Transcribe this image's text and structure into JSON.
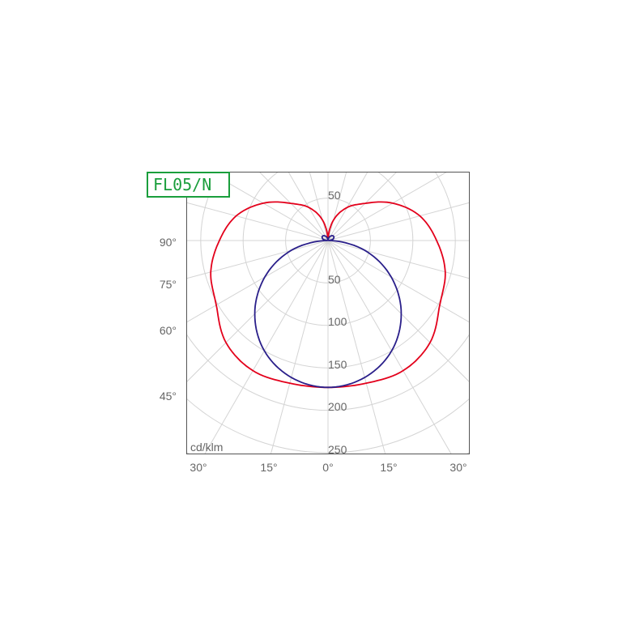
{
  "chart_data": {
    "type": "polar",
    "title": "FL05/N",
    "unit_label": "cd/klm",
    "radial_ticks": [
      50,
      100,
      150,
      200,
      250
    ],
    "radial_max": 250,
    "angle_ticks_left": [
      "90°",
      "75°",
      "60°",
      "45°"
    ],
    "angle_ticks_bottom": [
      "30°",
      "15°",
      "0°",
      "15°",
      "30°"
    ],
    "grid": true,
    "angles_deg": [
      0,
      15,
      30,
      45,
      60,
      75,
      90,
      105,
      120,
      135,
      150,
      165,
      180
    ],
    "series": [
      {
        "color": "#e3001b",
        "values": [
          173,
          174,
          177,
          170,
          152,
          143,
          128,
          112,
          88,
          62,
          45,
          25,
          0
        ]
      },
      {
        "color": "#2a1f8a",
        "values": [
          173,
          167,
          150,
          122,
          86,
          45,
          3,
          6,
          8,
          8,
          6,
          3,
          0
        ]
      }
    ]
  }
}
